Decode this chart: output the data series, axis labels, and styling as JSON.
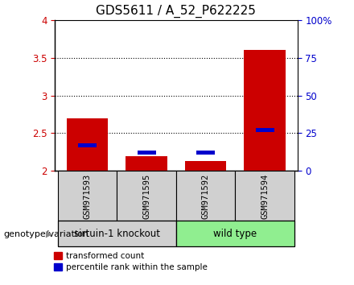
{
  "title": "GDS5611 / A_52_P622225",
  "samples": [
    "GSM971593",
    "GSM971595",
    "GSM971592",
    "GSM971594"
  ],
  "red_values": [
    2.7,
    2.2,
    2.13,
    3.6
  ],
  "blue_percentiles": [
    17,
    12,
    12,
    27
  ],
  "ylim_left": [
    2.0,
    4.0
  ],
  "ylim_right": [
    0,
    100
  ],
  "yticks_left": [
    2.0,
    2.5,
    3.0,
    3.5,
    4.0
  ],
  "yticks_right": [
    0,
    25,
    50,
    75,
    100
  ],
  "grid_lines": [
    2.5,
    3.0,
    3.5
  ],
  "groups": [
    {
      "label": "sirtuin-1 knockout",
      "indices": [
        0,
        1
      ],
      "color": "#d0d0d0"
    },
    {
      "label": "wild type",
      "indices": [
        2,
        3
      ],
      "color": "#90EE90"
    }
  ],
  "bar_width": 0.7,
  "red_color": "#cc0000",
  "blue_color": "#0000cc",
  "legend_red": "transformed count",
  "legend_blue": "percentile rank within the sample",
  "genotype_label": "genotype/variation",
  "title_fontsize": 11,
  "tick_fontsize": 8.5,
  "bar_base": 2.0,
  "sample_box_color": "#d0d0d0"
}
